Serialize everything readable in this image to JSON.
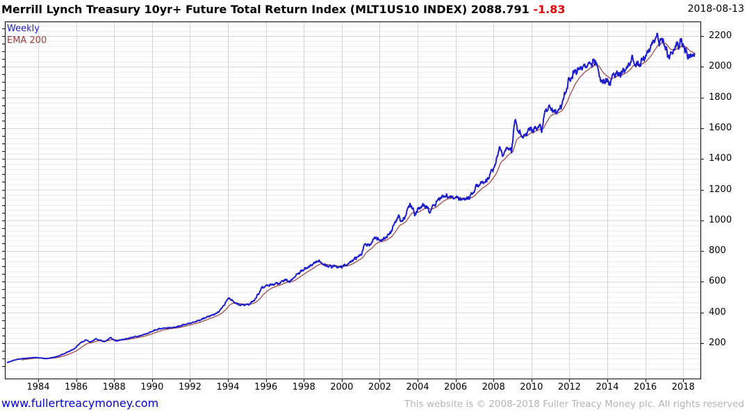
{
  "header": {
    "title": "Merrill Lynch Treasury 10yr+ Future Total Return Index (MLT1US10 INDEX)",
    "last_price": "2088.791",
    "change": "-1.83",
    "change_color": "#e00000",
    "date": "2018-08-13"
  },
  "legend": {
    "frequency_label": "Weekly",
    "frequency_color": "#1c1ccd",
    "ema_label": "EMA 200",
    "ema_color": "#9b3d3d"
  },
  "footer": {
    "link": "www.fullertreacymoney.com",
    "link_color": "#0000dd",
    "copyright": "This website is © 2008-2018 Fuller Treacy Money plc. All rights reserved"
  },
  "chart_data": {
    "type": "line",
    "title": "Merrill Lynch Treasury 10yr+ Future Total Return Index (MLT1US10 INDEX)",
    "xlabel": "",
    "ylabel": "",
    "x_range": [
      1982.24,
      2018.9
    ],
    "y_range": [
      0,
      2300
    ],
    "x_ticks": [
      1984,
      1986,
      1988,
      1990,
      1992,
      1994,
      1996,
      1998,
      2000,
      2002,
      2004,
      2006,
      2008,
      2010,
      2012,
      2014,
      2016,
      2018
    ],
    "y_ticks": [
      200,
      400,
      600,
      800,
      1000,
      1200,
      1400,
      1600,
      1800,
      2000,
      2200
    ],
    "grid": {
      "major_color": "#d4d4d4",
      "minor_color": "#ececec",
      "minor_divisions_per_major": 6,
      "vertical_step_years": 2
    },
    "last_value": 2088.791,
    "series": [
      {
        "name": "MLT1US10 weekly price",
        "color": "#1c1ccd",
        "width": 2,
        "anchors": [
          [
            1982.35,
            73
          ],
          [
            1982.6,
            84
          ],
          [
            1982.9,
            95
          ],
          [
            1983.2,
            100
          ],
          [
            1983.5,
            103
          ],
          [
            1983.8,
            107
          ],
          [
            1984.1,
            104
          ],
          [
            1984.45,
            99
          ],
          [
            1984.75,
            106
          ],
          [
            1985.05,
            116
          ],
          [
            1985.35,
            131
          ],
          [
            1985.65,
            148
          ],
          [
            1985.95,
            167
          ],
          [
            1986.2,
            200
          ],
          [
            1986.5,
            221
          ],
          [
            1986.75,
            207
          ],
          [
            1987.05,
            228
          ],
          [
            1987.3,
            218
          ],
          [
            1987.5,
            210
          ],
          [
            1987.8,
            236
          ],
          [
            1988.1,
            214
          ],
          [
            1988.35,
            221
          ],
          [
            1988.7,
            230
          ],
          [
            1989.0,
            240
          ],
          [
            1989.4,
            248
          ],
          [
            1989.8,
            266
          ],
          [
            1990.1,
            282
          ],
          [
            1990.4,
            294
          ],
          [
            1990.7,
            297
          ],
          [
            1991.0,
            301
          ],
          [
            1991.4,
            309
          ],
          [
            1991.8,
            325
          ],
          [
            1992.2,
            335
          ],
          [
            1992.6,
            355
          ],
          [
            1992.9,
            371
          ],
          [
            1993.2,
            383
          ],
          [
            1993.5,
            401
          ],
          [
            1993.8,
            450
          ],
          [
            1994.05,
            497
          ],
          [
            1994.3,
            470
          ],
          [
            1994.55,
            452
          ],
          [
            1994.8,
            449
          ],
          [
            1995.1,
            452
          ],
          [
            1995.4,
            480
          ],
          [
            1995.8,
            560
          ],
          [
            1996.1,
            576
          ],
          [
            1996.45,
            585
          ],
          [
            1996.75,
            592
          ],
          [
            1997.0,
            612
          ],
          [
            1997.25,
            603
          ],
          [
            1997.55,
            638
          ],
          [
            1997.9,
            673
          ],
          [
            1998.2,
            692
          ],
          [
            1998.5,
            716
          ],
          [
            1998.75,
            740
          ],
          [
            1999.0,
            713
          ],
          [
            1999.3,
            698
          ],
          [
            1999.6,
            702
          ],
          [
            1999.95,
            696
          ],
          [
            2000.3,
            716
          ],
          [
            2000.65,
            748
          ],
          [
            2001.0,
            772
          ],
          [
            2001.25,
            848
          ],
          [
            2001.45,
            832
          ],
          [
            2001.75,
            893
          ],
          [
            2002.05,
            871
          ],
          [
            2002.35,
            890
          ],
          [
            2002.6,
            928
          ],
          [
            2002.8,
            983
          ],
          [
            2003.0,
            1026
          ],
          [
            2003.2,
            988
          ],
          [
            2003.45,
            1062
          ],
          [
            2003.6,
            1108
          ],
          [
            2003.85,
            1046
          ],
          [
            2004.1,
            1080
          ],
          [
            2004.35,
            1100
          ],
          [
            2004.6,
            1060
          ],
          [
            2004.9,
            1103
          ],
          [
            2005.2,
            1148
          ],
          [
            2005.5,
            1158
          ],
          [
            2005.8,
            1146
          ],
          [
            2006.1,
            1151
          ],
          [
            2006.35,
            1134
          ],
          [
            2006.65,
            1148
          ],
          [
            2006.9,
            1172
          ],
          [
            2007.15,
            1230
          ],
          [
            2007.4,
            1242
          ],
          [
            2007.65,
            1258
          ],
          [
            2007.9,
            1315
          ],
          [
            2008.1,
            1357
          ],
          [
            2008.3,
            1478
          ],
          [
            2008.5,
            1422
          ],
          [
            2008.75,
            1482
          ],
          [
            2008.95,
            1445
          ],
          [
            2009.12,
            1652
          ],
          [
            2009.3,
            1580
          ],
          [
            2009.5,
            1550
          ],
          [
            2009.7,
            1552
          ],
          [
            2009.9,
            1597
          ],
          [
            2010.15,
            1588
          ],
          [
            2010.35,
            1606
          ],
          [
            2010.55,
            1597
          ],
          [
            2010.75,
            1712
          ],
          [
            2010.95,
            1748
          ],
          [
            2011.15,
            1705
          ],
          [
            2011.35,
            1698
          ],
          [
            2011.55,
            1738
          ],
          [
            2011.75,
            1812
          ],
          [
            2011.95,
            1900
          ],
          [
            2012.15,
            1945
          ],
          [
            2012.4,
            1978
          ],
          [
            2012.7,
            2000
          ],
          [
            2012.95,
            2008
          ],
          [
            2013.2,
            2018
          ],
          [
            2013.45,
            2028
          ],
          [
            2013.6,
            1940
          ],
          [
            2013.8,
            1890
          ],
          [
            2013.95,
            1915
          ],
          [
            2014.1,
            1886
          ],
          [
            2014.3,
            1947
          ],
          [
            2014.55,
            1955
          ],
          [
            2014.85,
            1970
          ],
          [
            2015.1,
            2007
          ],
          [
            2015.35,
            2052
          ],
          [
            2015.55,
            2012
          ],
          [
            2015.75,
            2030
          ],
          [
            2016.0,
            2070
          ],
          [
            2016.25,
            2125
          ],
          [
            2016.45,
            2165
          ],
          [
            2016.62,
            2206
          ],
          [
            2016.75,
            2152
          ],
          [
            2016.88,
            2184
          ],
          [
            2017.0,
            2140
          ],
          [
            2017.15,
            2076
          ],
          [
            2017.3,
            2060
          ],
          [
            2017.5,
            2117
          ],
          [
            2017.7,
            2140
          ],
          [
            2017.9,
            2165
          ],
          [
            2018.05,
            2120
          ],
          [
            2018.25,
            2062
          ],
          [
            2018.45,
            2080
          ],
          [
            2018.6,
            2088.791
          ]
        ]
      },
      {
        "name": "EMA 200",
        "color": "#9b3d3d",
        "width": 1.2,
        "derived": "ema_of_price",
        "alpha": 0.05
      }
    ]
  }
}
